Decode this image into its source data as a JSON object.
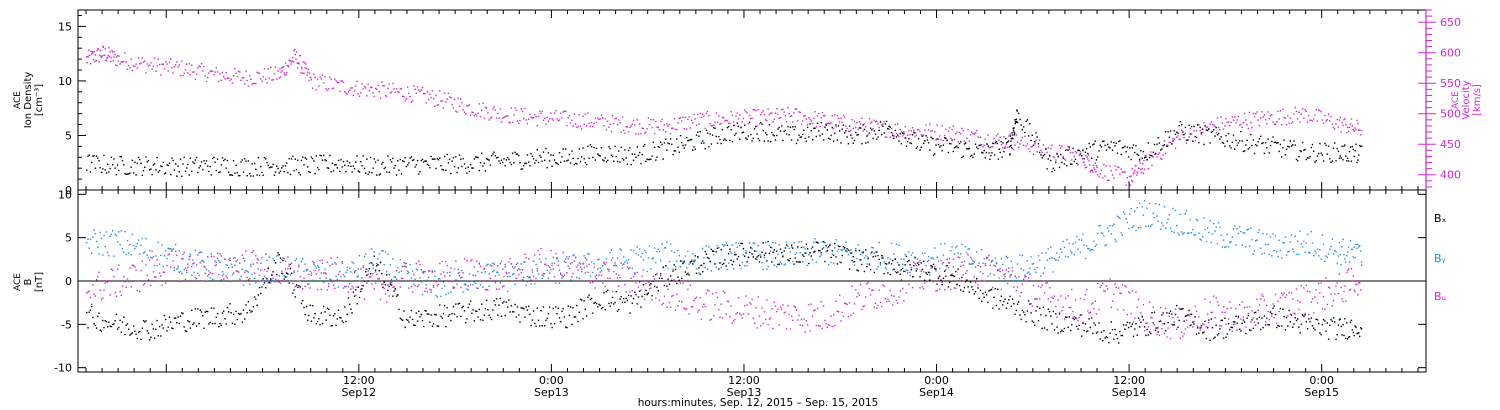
{
  "figure": {
    "xaxis_title": "hours:minutes, Sep. 12, 2015 – Sep. 15, 2015",
    "colors": {
      "black": "#000000",
      "magenta": "#d326d3",
      "blue": "#1e8ee6"
    }
  },
  "chart_data": [
    {
      "type": "scatter",
      "panel": "top",
      "ylabel_left": [
        "ACE",
        "Ion Density",
        "[cm⁻³]"
      ],
      "ylabel_right": [
        "ACE",
        "Velocity",
        "[km/s]"
      ],
      "xlim_hours": [
        -5.5,
        78.5
      ],
      "ylim_left": [
        0,
        16.5
      ],
      "ylim_right": [
        375,
        670
      ],
      "yticks_left": [
        0,
        5,
        10,
        15
      ],
      "yticks_right": [
        400,
        450,
        500,
        550,
        600,
        650
      ],
      "series": [
        {
          "axis": "left",
          "color": "#000000",
          "x": [
            -5,
            -3,
            -1,
            1,
            3,
            5,
            7,
            9,
            11,
            13,
            15,
            17,
            19,
            21,
            23,
            25,
            27,
            29,
            31,
            33,
            35,
            37,
            39,
            41,
            43,
            45,
            47,
            49,
            51,
            52.5,
            53,
            55,
            57,
            59,
            61,
            63,
            65,
            67,
            69,
            71,
            73,
            74.5
          ],
          "values": [
            2.5,
            2.3,
            2.3,
            2.2,
            2.3,
            2.2,
            2.3,
            2.3,
            2.5,
            2.2,
            2.4,
            2.4,
            2.5,
            2.7,
            3.0,
            3.0,
            3.5,
            3.2,
            3.8,
            4.5,
            5.3,
            5.5,
            5.0,
            5.5,
            5.0,
            5.8,
            4.2,
            4.0,
            3.5,
            4.0,
            7.0,
            2.5,
            3.5,
            4.0,
            3.5,
            5.5,
            5.0,
            4.5,
            4.0,
            3.5,
            3.5,
            3.3
          ]
        },
        {
          "axis": "right",
          "color": "#d326d3",
          "x": [
            -5,
            -4,
            -3,
            -1,
            1,
            3,
            5,
            7,
            8,
            9,
            11,
            13,
            15,
            17,
            19,
            21,
            23,
            25,
            27,
            29,
            31,
            33,
            35,
            37,
            39,
            41,
            43,
            45,
            47,
            49,
            51,
            53,
            55,
            57,
            58,
            60,
            61,
            63,
            65,
            67,
            69,
            71,
            73,
            74.5
          ],
          "values": [
            590,
            600,
            590,
            580,
            575,
            565,
            560,
            565,
            595,
            555,
            545,
            540,
            535,
            525,
            510,
            500,
            495,
            492,
            487,
            482,
            480,
            490,
            492,
            495,
            498,
            490,
            482,
            476,
            472,
            470,
            460,
            455,
            440,
            430,
            410,
            395,
            420,
            460,
            480,
            490,
            495,
            500,
            485,
            475
          ]
        }
      ]
    },
    {
      "type": "scatter",
      "panel": "bottom",
      "ylabel_left": [
        "ACE",
        "B",
        "[nT]"
      ],
      "xlim_hours": [
        -5.5,
        78.5
      ],
      "ylim": [
        -10.5,
        10.5
      ],
      "yticks": [
        -10,
        -5,
        0,
        5,
        10
      ],
      "legend": [
        "Bₓ",
        "Bᵧ",
        "Bᵤ"
      ],
      "legend_position": "right",
      "series": [
        {
          "name": "Bₓ",
          "color": "#000000",
          "x": [
            -5,
            -3,
            -1,
            1,
            3,
            5,
            7,
            9,
            11,
            13,
            15,
            17,
            19,
            21,
            23,
            25,
            27,
            29,
            31,
            33,
            35,
            37,
            39,
            41,
            43,
            45,
            47,
            49,
            51,
            53,
            55,
            57,
            59,
            61,
            63,
            65,
            67,
            69,
            71,
            73,
            74.5
          ],
          "values": [
            -4.0,
            -5.0,
            -5.5,
            -4.5,
            -4.0,
            -3.5,
            2.5,
            -4.0,
            -4.0,
            2.0,
            -4.5,
            -4.0,
            -3.5,
            -3.0,
            -4.0,
            -4.0,
            -2.0,
            -2.5,
            0.5,
            2.0,
            3.0,
            3.5,
            3.0,
            3.5,
            2.5,
            2.0,
            1.5,
            0.5,
            -1.5,
            -3.0,
            -4.5,
            -5.0,
            -6.0,
            -5.0,
            -4.0,
            -5.5,
            -5.0,
            -4.0,
            -5.0,
            -5.5,
            -5.0
          ]
        },
        {
          "name": "Bᵧ",
          "color": "#1e8ee6",
          "x": [
            -5,
            -3,
            -1,
            1,
            3,
            5,
            7,
            9,
            11,
            13,
            15,
            17,
            19,
            21,
            23,
            25,
            27,
            29,
            31,
            33,
            35,
            37,
            39,
            41,
            43,
            45,
            47,
            49,
            51,
            53,
            55,
            57,
            59,
            61,
            63,
            65,
            67,
            69,
            71,
            73,
            74.5
          ],
          "values": [
            4.5,
            4.5,
            3.5,
            2.5,
            1.5,
            1.0,
            1.5,
            1.0,
            0.5,
            2.5,
            0.5,
            -0.5,
            0.5,
            1.0,
            1.0,
            1.5,
            2.0,
            2.5,
            3.0,
            2.5,
            3.0,
            3.0,
            3.0,
            3.5,
            3.0,
            3.0,
            2.5,
            3.0,
            2.0,
            1.5,
            2.5,
            4.0,
            6.0,
            8.0,
            7.0,
            5.5,
            5.0,
            4.0,
            4.5,
            3.5,
            3.0
          ]
        },
        {
          "name": "Bᵤ",
          "color": "#d326d3",
          "x": [
            -5,
            -3,
            -1,
            1,
            3,
            5,
            7,
            9,
            11,
            13,
            15,
            17,
            19,
            21,
            23,
            25,
            27,
            29,
            31,
            33,
            35,
            37,
            39,
            41,
            43,
            45,
            47,
            49,
            51,
            53,
            55,
            57,
            59,
            61,
            63,
            65,
            67,
            69,
            71,
            73,
            74.5
          ],
          "values": [
            -1.0,
            0.0,
            1.0,
            2.0,
            1.5,
            2.0,
            1.0,
            0.5,
            1.0,
            -1.0,
            0.5,
            0.5,
            1.0,
            0.5,
            2.0,
            1.5,
            1.0,
            0.0,
            -1.0,
            -2.5,
            -3.0,
            -3.5,
            -4.0,
            -4.0,
            -2.0,
            -1.0,
            0.5,
            1.0,
            1.5,
            0.0,
            -2.0,
            -3.0,
            -1.0,
            -4.0,
            -5.0,
            -3.5,
            -4.0,
            -3.0,
            -2.0,
            -1.0,
            0.5
          ]
        }
      ]
    }
  ],
  "x_ticks": [
    {
      "h": 12,
      "time": "12:00",
      "date": "Sep12"
    },
    {
      "h": 24,
      "time": "0:00",
      "date": "Sep13"
    },
    {
      "h": 36,
      "time": "12:00",
      "date": "Sep13"
    },
    {
      "h": 48,
      "time": "0:00",
      "date": "Sep14"
    },
    {
      "h": 60,
      "time": "12:00",
      "date": "Sep14"
    },
    {
      "h": 72,
      "time": "0:00",
      "date": "Sep15"
    }
  ]
}
